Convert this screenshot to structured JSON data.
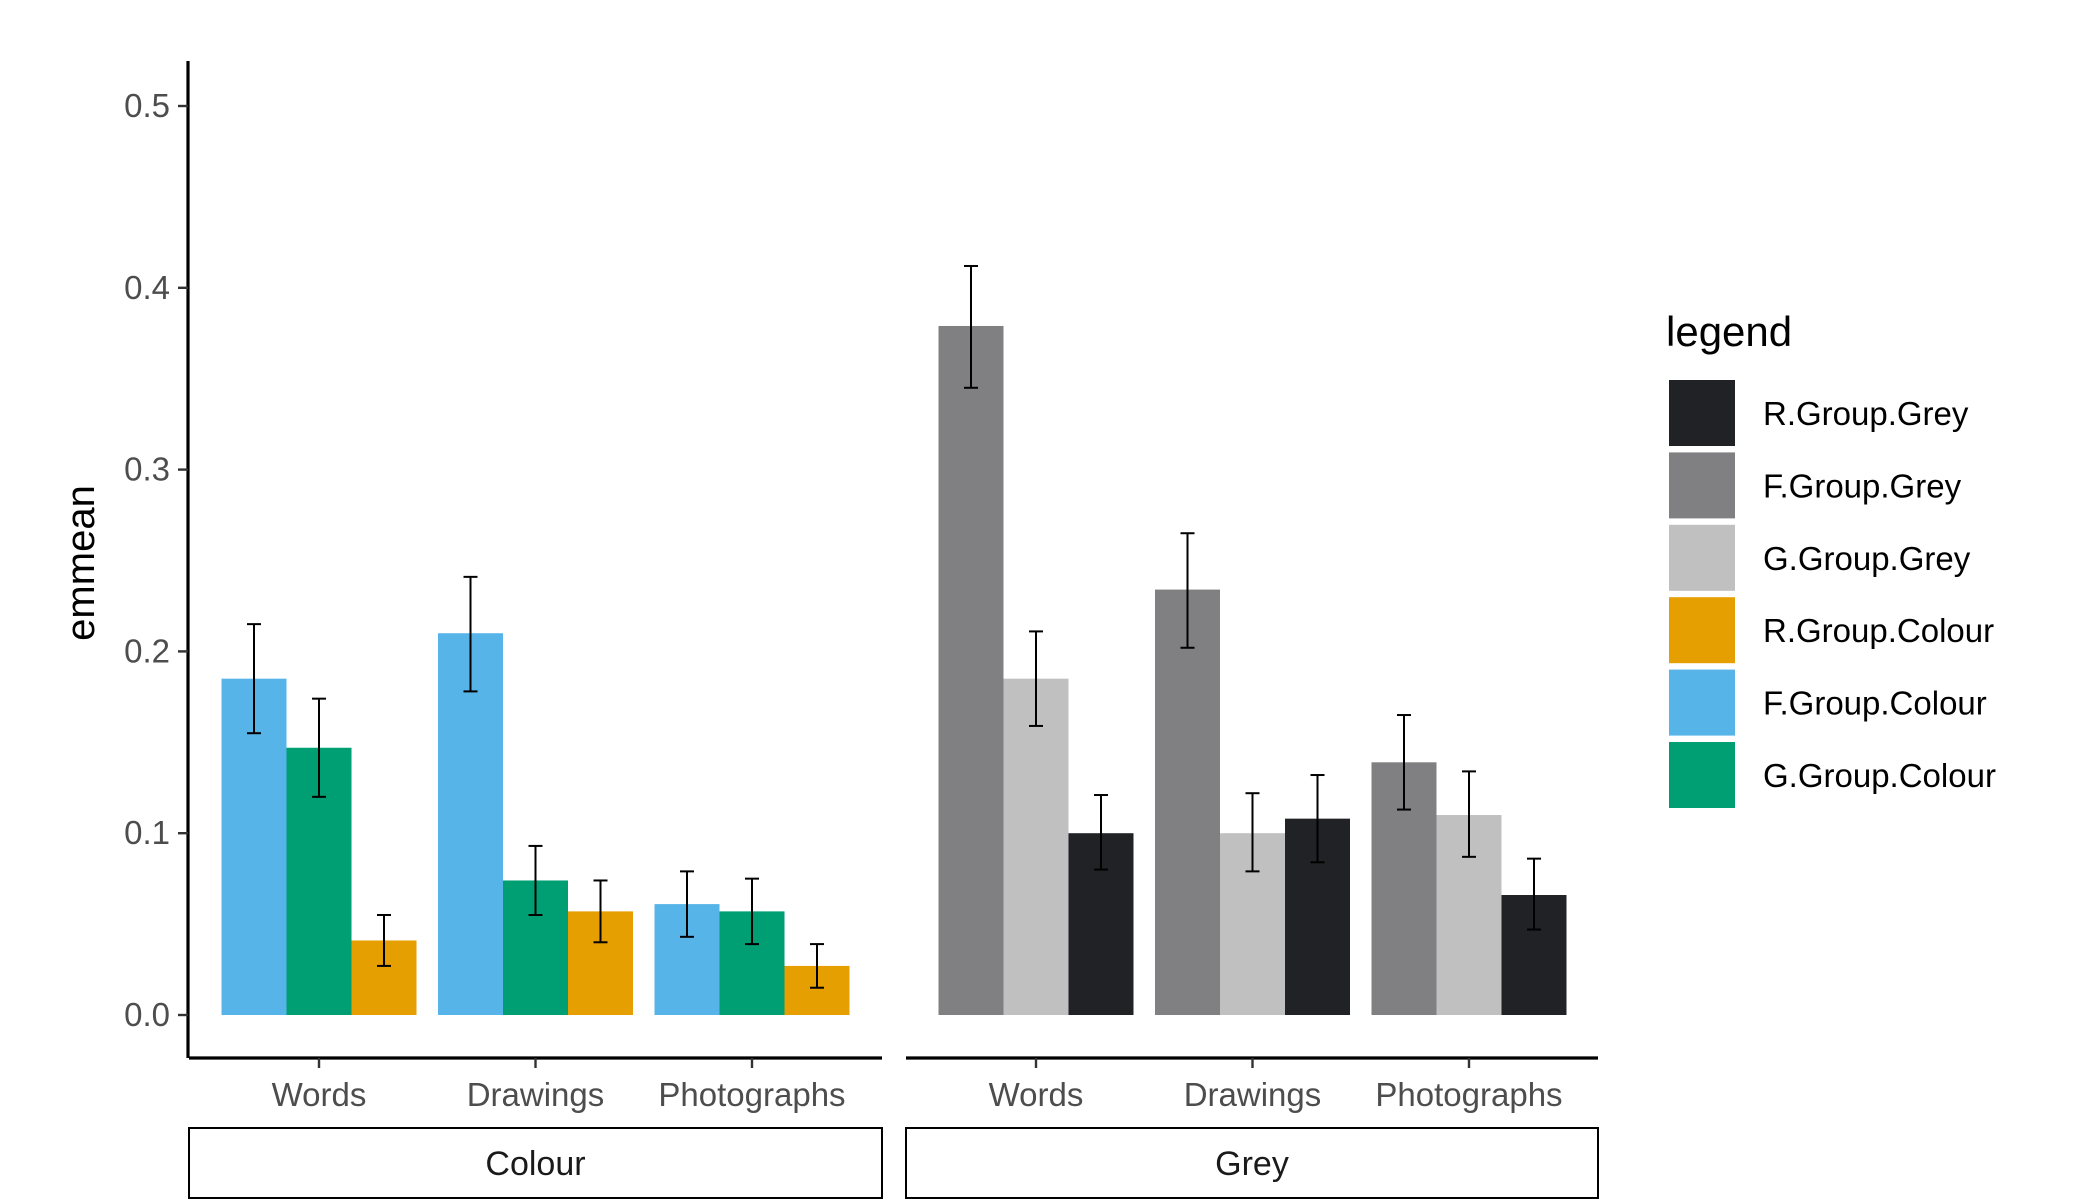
{
  "chart_data": {
    "type": "bar",
    "ylabel": "emmean",
    "ylim": [
      0,
      0.5
    ],
    "yticks": [
      0.0,
      0.1,
      0.2,
      0.3,
      0.4,
      0.5
    ],
    "ytick_labels": [
      "0.0",
      "0.1",
      "0.2",
      "0.3",
      "0.4",
      "0.5"
    ],
    "grid": false,
    "legend_position": "right",
    "legend_title": "legend",
    "legend": [
      {
        "name": "R.Group.Grey",
        "color": "#212226"
      },
      {
        "name": "F.Group.Grey",
        "color": "#808082"
      },
      {
        "name": "G.Group.Grey",
        "color": "#c0c0c0"
      },
      {
        "name": "R.Group.Colour",
        "color": "#e69f00"
      },
      {
        "name": "F.Group.Colour",
        "color": "#56b4e9"
      },
      {
        "name": "G.Group.Colour",
        "color": "#009e73"
      }
    ],
    "categories": [
      "Words",
      "Drawings",
      "Photographs"
    ],
    "panels": [
      {
        "strip": "Colour",
        "series": [
          {
            "name": "F.Group.Colour",
            "values": [
              0.185,
              0.21,
              0.061
            ],
            "lower": [
              0.155,
              0.178,
              0.043
            ],
            "upper": [
              0.215,
              0.241,
              0.079
            ]
          },
          {
            "name": "G.Group.Colour",
            "values": [
              0.147,
              0.074,
              0.057
            ],
            "lower": [
              0.12,
              0.055,
              0.039
            ],
            "upper": [
              0.174,
              0.093,
              0.075
            ]
          },
          {
            "name": "R.Group.Colour",
            "values": [
              0.041,
              0.057,
              0.027
            ],
            "lower": [
              0.027,
              0.04,
              0.015
            ],
            "upper": [
              0.055,
              0.074,
              0.039
            ]
          }
        ]
      },
      {
        "strip": "Grey",
        "series": [
          {
            "name": "F.Group.Grey",
            "values": [
              0.379,
              0.234,
              0.139
            ],
            "lower": [
              0.345,
              0.202,
              0.113
            ],
            "upper": [
              0.412,
              0.265,
              0.165
            ]
          },
          {
            "name": "G.Group.Grey",
            "values": [
              0.185,
              0.1,
              0.11
            ],
            "lower": [
              0.159,
              0.079,
              0.087
            ],
            "upper": [
              0.211,
              0.122,
              0.134
            ]
          },
          {
            "name": "R.Group.Grey",
            "values": [
              0.1,
              0.108,
              0.066
            ],
            "lower": [
              0.08,
              0.084,
              0.047
            ],
            "upper": [
              0.121,
              0.132,
              0.086
            ]
          }
        ]
      }
    ]
  }
}
